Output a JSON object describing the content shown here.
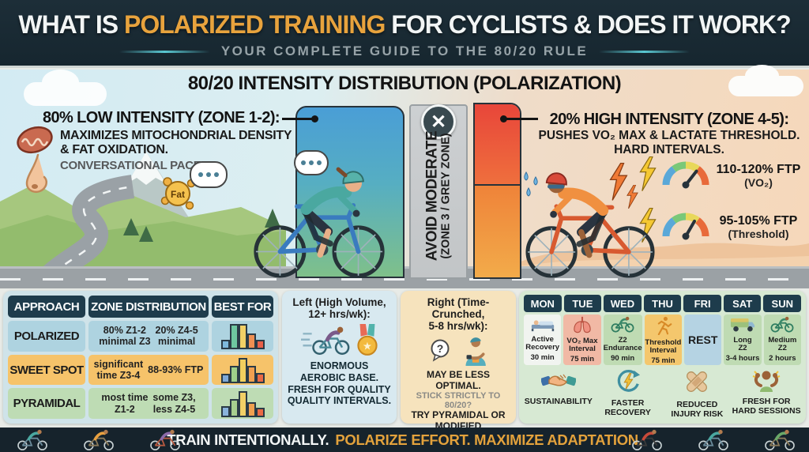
{
  "colors": {
    "accent_gold": "#E8A33D",
    "header_bg": "#1B2A33",
    "low_bar_top": "#4A9ED6",
    "low_bar_bottom": "#7FC08A",
    "high_bar_red": "#E8463A",
    "high_bar_orange": "#F2AB4A",
    "grey_zone": "#C7CACC",
    "table_header_navy": "#1E3C4C"
  },
  "header": {
    "title_prefix": "WHAT IS",
    "title_highlight": "POLARIZED TRAINING",
    "title_suffix": "FOR CYCLISTS & DOES IT WORK?",
    "subtitle": "YOUR COMPLETE GUIDE TO THE 80/20 RULE"
  },
  "scene": {
    "title": "80/20 INTENSITY DISTRIBUTION (POLARIZATION)",
    "low_intensity": {
      "heading": "80% LOW INTENSITY (ZONE 1-2):",
      "benefit_line1": "MAXIMIZES MITOCHONDRIAL DENSITY",
      "benefit_line2": "& FAT OXIDATION.",
      "pace_note": "CONVERSATIONAL PACE.",
      "fat_label": "Fat"
    },
    "avoid_zone": {
      "label_main": "AVOID MODERATE",
      "label_sub": "(ZONE 3 / GREY ZONE)",
      "x_glyph": "✕"
    },
    "high_intensity": {
      "heading": "20% HIGH INTENSITY (ZONE 4-5):",
      "benefit_line1": "PUSHES VO₂ MAX & LACTATE THRESHOLD.",
      "benefit_line2": "HARD INTERVALS.",
      "gauges": [
        {
          "range": "110-120% FTP",
          "target": "(VO₂)"
        },
        {
          "range": "95-105% FTP",
          "target": "(Threshold)"
        }
      ]
    }
  },
  "comparison_table": {
    "headers": [
      "APPROACH",
      "ZONE DISTRIBUTION",
      "BEST FOR"
    ],
    "rows": [
      {
        "approach": "POLARIZED",
        "zone_a": "80% Z1-2\nminimal Z3",
        "zone_b": "20% Z4-5\nminimal",
        "row_color": "#AED3E0",
        "histogram": [
          {
            "h": 0.32,
            "c": "#7FB9DC"
          },
          {
            "h": 0.95,
            "c": "#6FC7A0"
          },
          {
            "h": 0.95,
            "c": "#F2D066"
          },
          {
            "h": 0.58,
            "c": "#EF8F52"
          },
          {
            "h": 0.32,
            "c": "#E8604A"
          }
        ]
      },
      {
        "approach": "SWEET SPOT",
        "zone_a": "significant\ntime Z3-4",
        "zone_b": "88-93% FTP",
        "row_color": "#F6C36A",
        "histogram": [
          {
            "h": 0.32,
            "c": "#7FA9D8"
          },
          {
            "h": 0.62,
            "c": "#9FCF8A"
          },
          {
            "h": 0.95,
            "c": "#F2CF5E"
          },
          {
            "h": 0.62,
            "c": "#F0A050"
          },
          {
            "h": 0.35,
            "c": "#EA6A45"
          }
        ]
      },
      {
        "approach": "PYRAMIDAL",
        "zone_a": "most time\nZ1-2",
        "zone_b": "some Z3,\nless Z4-5",
        "row_color": "#BEDCB4",
        "histogram": [
          {
            "h": 0.35,
            "c": "#8AB4DC"
          },
          {
            "h": 0.65,
            "c": "#A8D08F"
          },
          {
            "h": 0.95,
            "c": "#F2D066"
          },
          {
            "h": 0.52,
            "c": "#F0A050"
          },
          {
            "h": 0.3,
            "c": "#EA6A45"
          }
        ]
      }
    ]
  },
  "high_volume_panel": {
    "title": "Left (High Volume,\n12+ hrs/wk):",
    "body": "ENORMOUS\nAEROBIC BASE.\nFRESH FOR QUALITY\nQUALITY INTERVALS."
  },
  "time_crunched_panel": {
    "title": "Right (Time-Crunched,\n5-8 hrs/wk):",
    "body_main": "MAY BE LESS OPTIMAL.",
    "body_question": "STICK STRICTLY TO 80/20?",
    "body_advice": "TRY PYRAMIDAL OR\nMODIFIED POLARIZED."
  },
  "weekly_plan": {
    "days": [
      {
        "day": "MON",
        "workout": "Active\nRecovery",
        "duration": "30 min",
        "icon": "bed-icon",
        "bg": "#F1F4F0"
      },
      {
        "day": "TUE",
        "workout": "VO₂ Max\nInterval",
        "duration": "75 min",
        "icon": "lungs-icon",
        "bg": "#F1B9A5"
      },
      {
        "day": "WED",
        "workout": "Z2\nEndurance",
        "duration": "90 min",
        "icon": "cyclist-icon",
        "bg": "#BFDBB3"
      },
      {
        "day": "THU",
        "workout": "Threshold\nInterval",
        "duration": "75 min",
        "icon": "runner-icon",
        "bg": "#F4C76D"
      },
      {
        "day": "FRI",
        "workout": "REST",
        "duration": "",
        "icon": "none",
        "bg": "#B5D3E3"
      },
      {
        "day": "SAT",
        "workout": "Long\nZ2",
        "duration": "3-4 hours",
        "icon": "van-icon",
        "bg": "#BFDBB3"
      },
      {
        "day": "SUN",
        "workout": "Medium\nZ2",
        "duration": "2 hours",
        "icon": "cyclist-icon",
        "bg": "#BFDBB3"
      }
    ]
  },
  "benefits": [
    {
      "label": "SUSTAINABILITY",
      "icon": "handshake-icon"
    },
    {
      "label": "FASTER\nRECOVERY",
      "icon": "recovery-icon"
    },
    {
      "label": "REDUCED\nINJURY RISK",
      "icon": "bandage-icon"
    },
    {
      "label": "FRESH FOR\nHARD SESSIONS",
      "icon": "flex-icon"
    }
  ],
  "footer": {
    "statement_primary": "TRAIN INTENTIONALLY.",
    "statement_accent": "POLARIZE EFFORT. MAXIMIZE ADAPTATION."
  }
}
